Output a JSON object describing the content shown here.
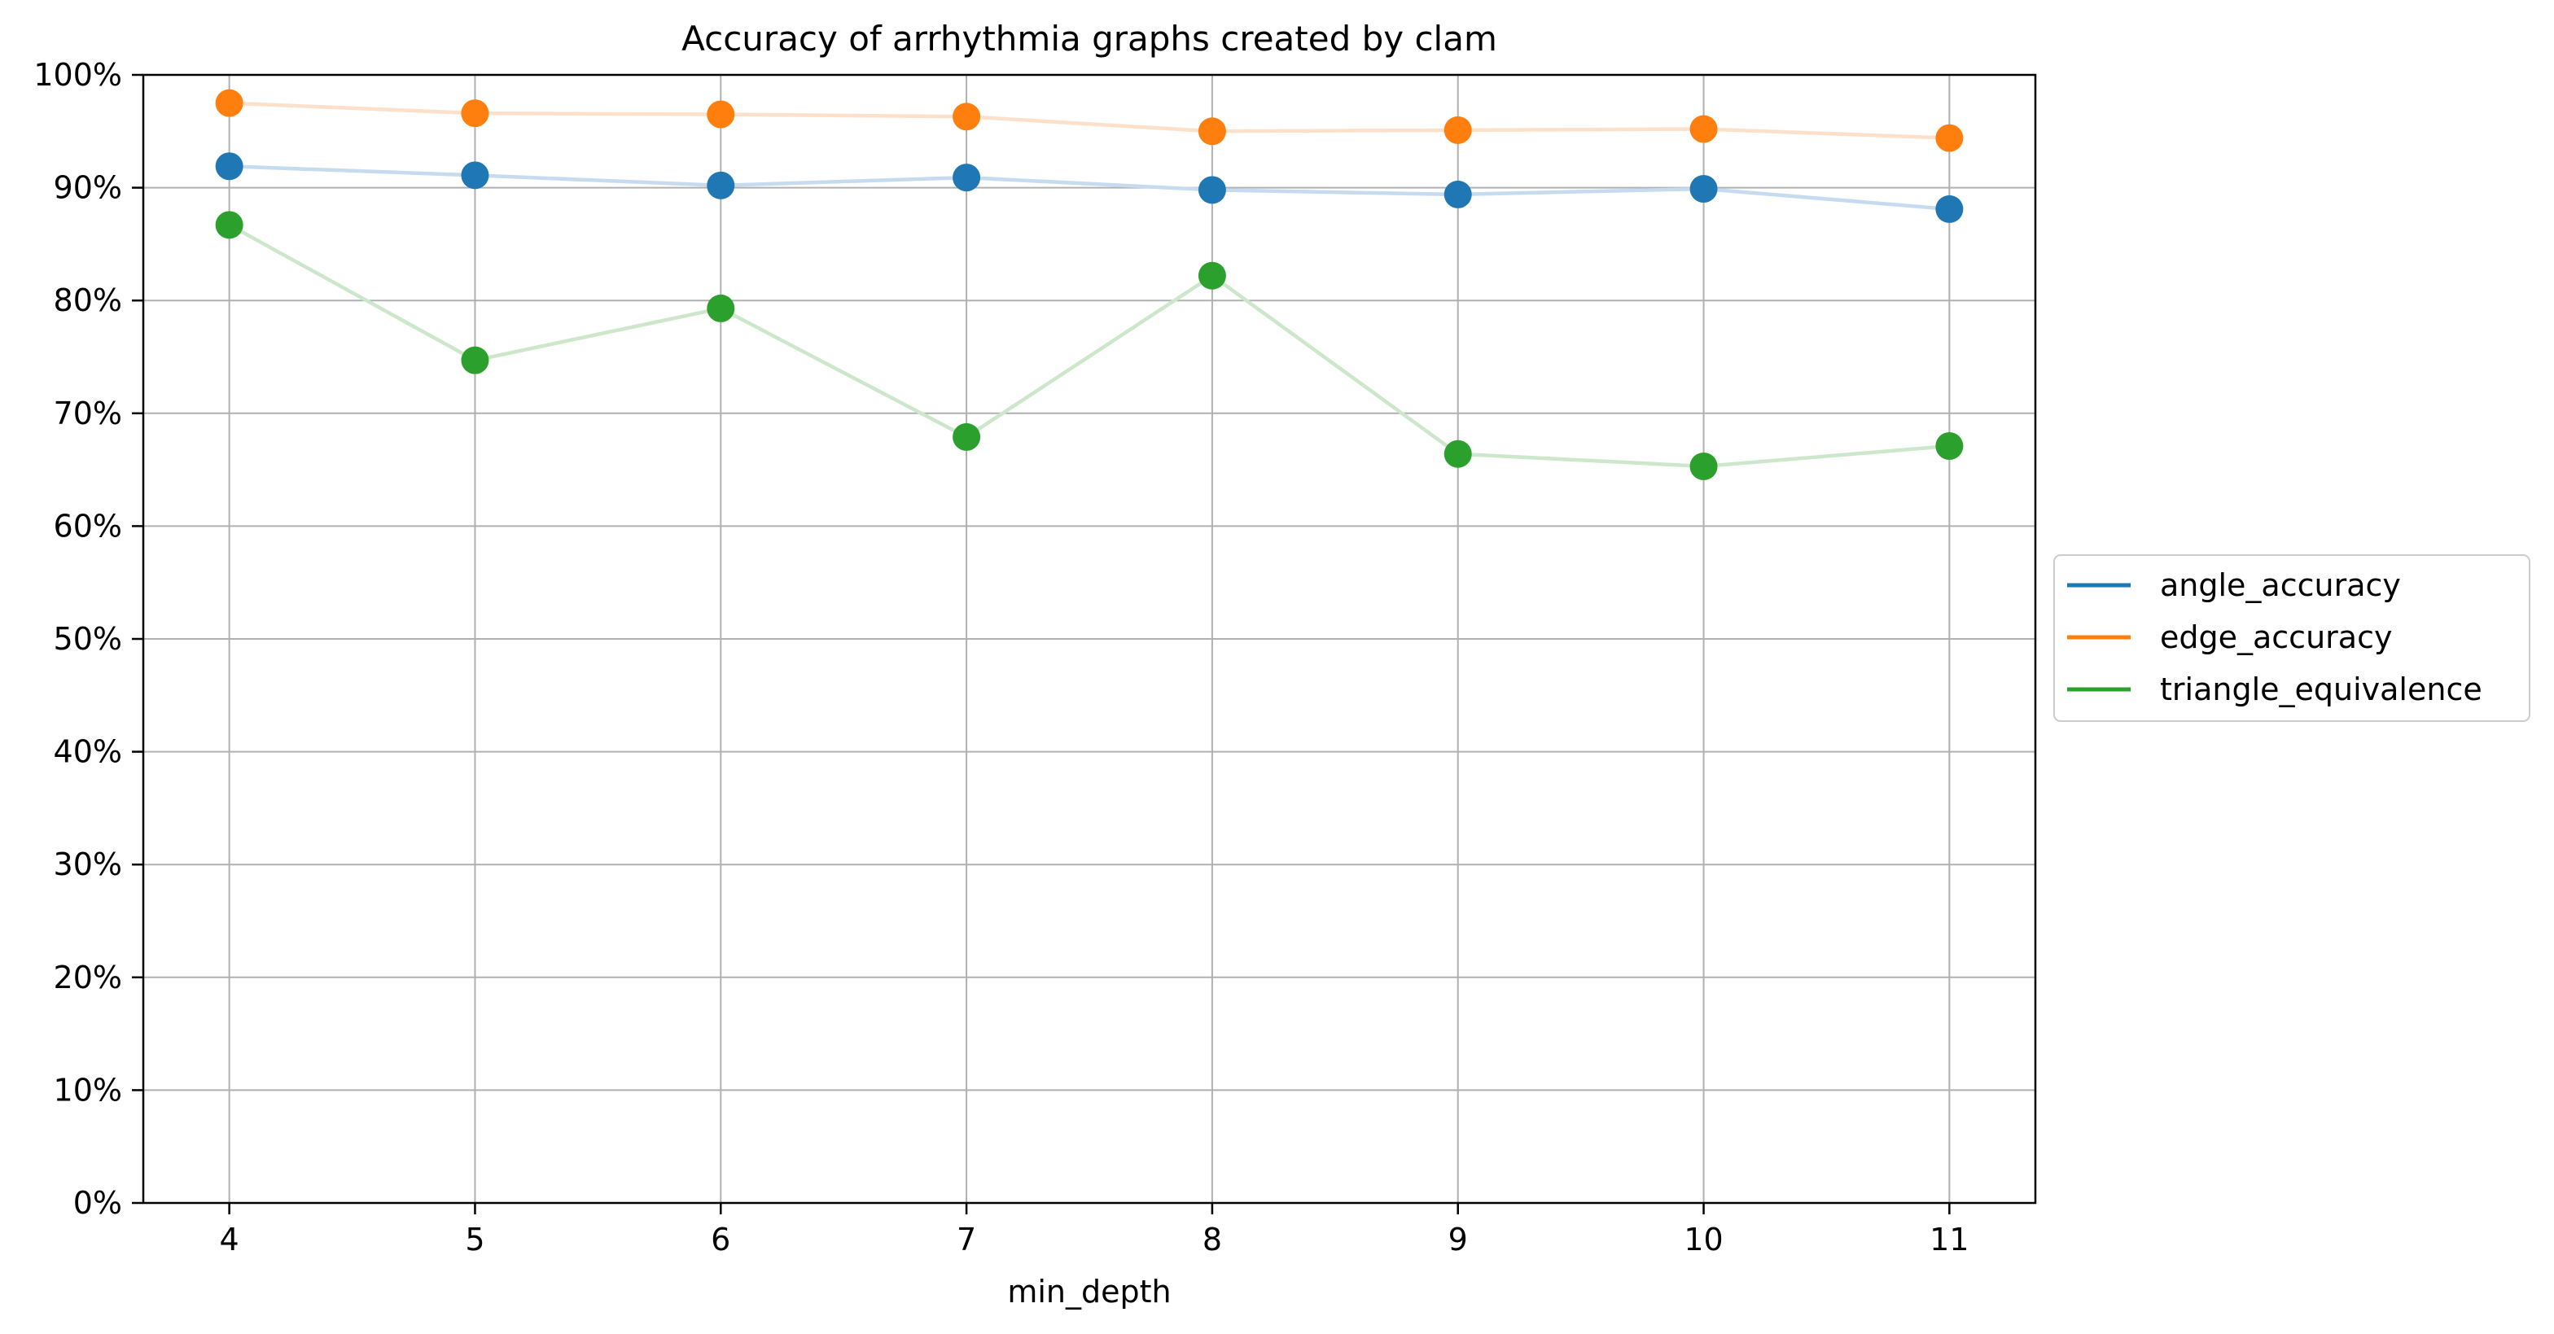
{
  "chart_data": {
    "type": "line",
    "title": "Accuracy of arrhythmia graphs created by clam",
    "xlabel": "min_depth",
    "ylabel": "",
    "x": [
      4,
      5,
      6,
      7,
      8,
      9,
      10,
      11
    ],
    "x_tick_labels": [
      "4",
      "5",
      "6",
      "7",
      "8",
      "9",
      "10",
      "11"
    ],
    "ylim": [
      0,
      100
    ],
    "y_tick_labels": [
      "0%",
      "10%",
      "20%",
      "30%",
      "40%",
      "50%",
      "60%",
      "70%",
      "80%",
      "90%",
      "100%"
    ],
    "y_ticks": [
      0,
      10,
      20,
      30,
      40,
      50,
      60,
      70,
      80,
      90,
      100
    ],
    "grid": true,
    "legend_position": "right (outside plot area)",
    "series": [
      {
        "name": "angle_accuracy",
        "color": "#1f77b4",
        "line_color": "#c6dbef",
        "values": [
          91.9,
          91.1,
          90.2,
          90.9,
          89.8,
          89.4,
          89.9,
          88.1
        ]
      },
      {
        "name": "edge_accuracy",
        "color": "#ff7f0e",
        "line_color": "#fde0c9",
        "values": [
          97.5,
          96.6,
          96.5,
          96.3,
          95.0,
          95.1,
          95.2,
          94.4
        ]
      },
      {
        "name": "triangle_equivalence",
        "color": "#2ca02c",
        "line_color": "#cde7cb",
        "values": [
          86.7,
          74.7,
          79.3,
          67.9,
          82.2,
          66.4,
          65.3,
          67.1
        ]
      }
    ]
  }
}
